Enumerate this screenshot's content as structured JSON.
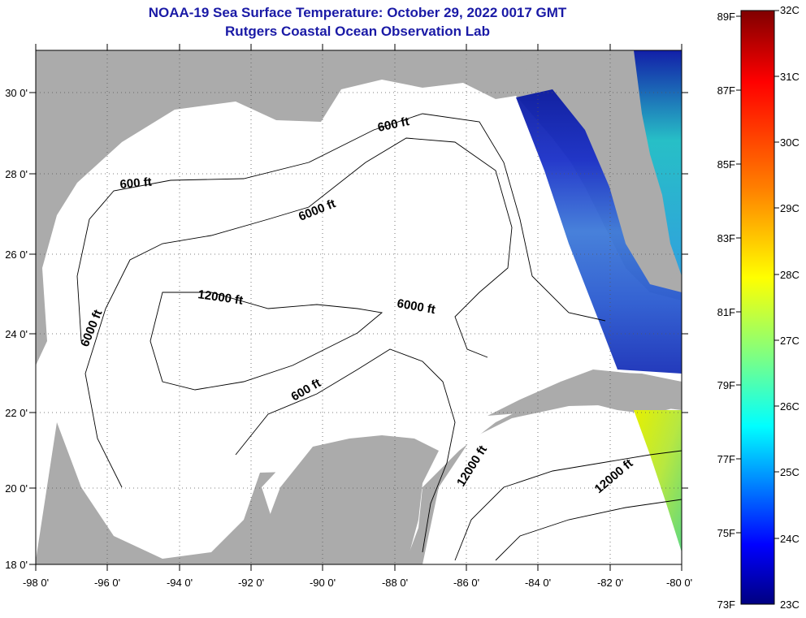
{
  "header": {
    "title": "NOAA-19 Sea Surface Temperature:  October 29, 2022 0017 GMT",
    "subtitle": "Rutgers Coastal Ocean Observation Lab"
  },
  "map": {
    "lon_range": [
      -98,
      -80
    ],
    "lat_range": [
      18,
      31
    ],
    "lon_ticks": [
      "-98 0'",
      "-96 0'",
      "-94 0'",
      "-92 0'",
      "-90 0'",
      "-88 0'",
      "-86 0'",
      "-84 0'",
      "-82 0'",
      "-80 0'"
    ],
    "lat_ticks": [
      "30 0'",
      "28 0'",
      "26 0'",
      "24 0'",
      "22 0'",
      "20 0'",
      "18 0'"
    ],
    "land_color": "#ababab",
    "water_color": "#ffffff",
    "contour_labels": [
      {
        "text": "600 ft"
      },
      {
        "text": "600 ft"
      },
      {
        "text": "6000 ft"
      },
      {
        "text": "6000 ft"
      },
      {
        "text": "12000 ft"
      },
      {
        "text": "6000 ft"
      },
      {
        "text": "600 ft"
      },
      {
        "text": "12000 ft"
      },
      {
        "text": "12000 ft"
      }
    ]
  },
  "colorbar": {
    "fahrenheit_labels": [
      "89F",
      "87F",
      "85F",
      "83F",
      "81F",
      "79F",
      "77F",
      "75F",
      "73F"
    ],
    "celsius_labels": [
      "32C",
      "31C",
      "30C",
      "29C",
      "28C",
      "27C",
      "26C",
      "25C",
      "24C",
      "23C"
    ],
    "colors": [
      "#800000",
      "#ff0000",
      "#ff8000",
      "#ffff00",
      "#80ff80",
      "#00ffff",
      "#0080ff",
      "#0000ff",
      "#000080"
    ]
  }
}
